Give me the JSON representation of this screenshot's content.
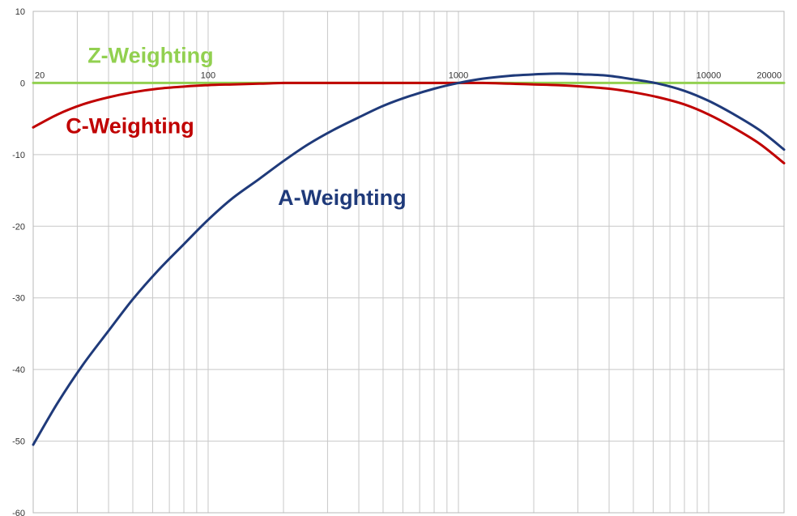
{
  "chart_data": {
    "type": "line",
    "title": "",
    "xlabel": "",
    "ylabel": "",
    "x_scale": "log",
    "xlim": [
      20,
      20000
    ],
    "ylim": [
      -60,
      10
    ],
    "grid": true,
    "y_ticks": [
      "10",
      "0",
      "-10",
      "-20",
      "-30",
      "-40",
      "-50",
      "-60"
    ],
    "x_tick_labels": [
      "20",
      "100",
      "1000",
      "10000",
      "20000"
    ],
    "x": [
      20,
      25,
      31.5,
      40,
      50,
      63,
      80,
      100,
      125,
      160,
      200,
      250,
      315,
      400,
      500,
      630,
      800,
      1000,
      1250,
      1600,
      2000,
      2500,
      3150,
      4000,
      5000,
      6300,
      8000,
      10000,
      12500,
      16000,
      20000
    ],
    "series": [
      {
        "name": "Z-Weighting",
        "color": "#92d050",
        "values": [
          0,
          0,
          0,
          0,
          0,
          0,
          0,
          0,
          0,
          0,
          0,
          0,
          0,
          0,
          0,
          0,
          0,
          0,
          0,
          0,
          0,
          0,
          0,
          0,
          0,
          0,
          0,
          0,
          0,
          0,
          0
        ]
      },
      {
        "name": "C-Weighting",
        "color": "#c00000",
        "values": [
          -6.2,
          -4.4,
          -3.0,
          -2.0,
          -1.3,
          -0.8,
          -0.5,
          -0.3,
          -0.2,
          -0.1,
          0,
          0,
          0,
          0,
          0,
          0,
          0,
          0,
          0,
          -0.1,
          -0.2,
          -0.3,
          -0.5,
          -0.8,
          -1.3,
          -2.0,
          -3.0,
          -4.4,
          -6.2,
          -8.5,
          -11.2
        ]
      },
      {
        "name": "A-Weighting",
        "color": "#1f3a7a",
        "values": [
          -50.5,
          -44.7,
          -39.4,
          -34.6,
          -30.2,
          -26.2,
          -22.5,
          -19.1,
          -16.1,
          -13.4,
          -10.9,
          -8.6,
          -6.6,
          -4.8,
          -3.2,
          -1.9,
          -0.8,
          0,
          0.6,
          1.0,
          1.2,
          1.3,
          1.2,
          1.0,
          0.5,
          -0.1,
          -1.1,
          -2.5,
          -4.3,
          -6.6,
          -9.3
        ]
      }
    ]
  }
}
